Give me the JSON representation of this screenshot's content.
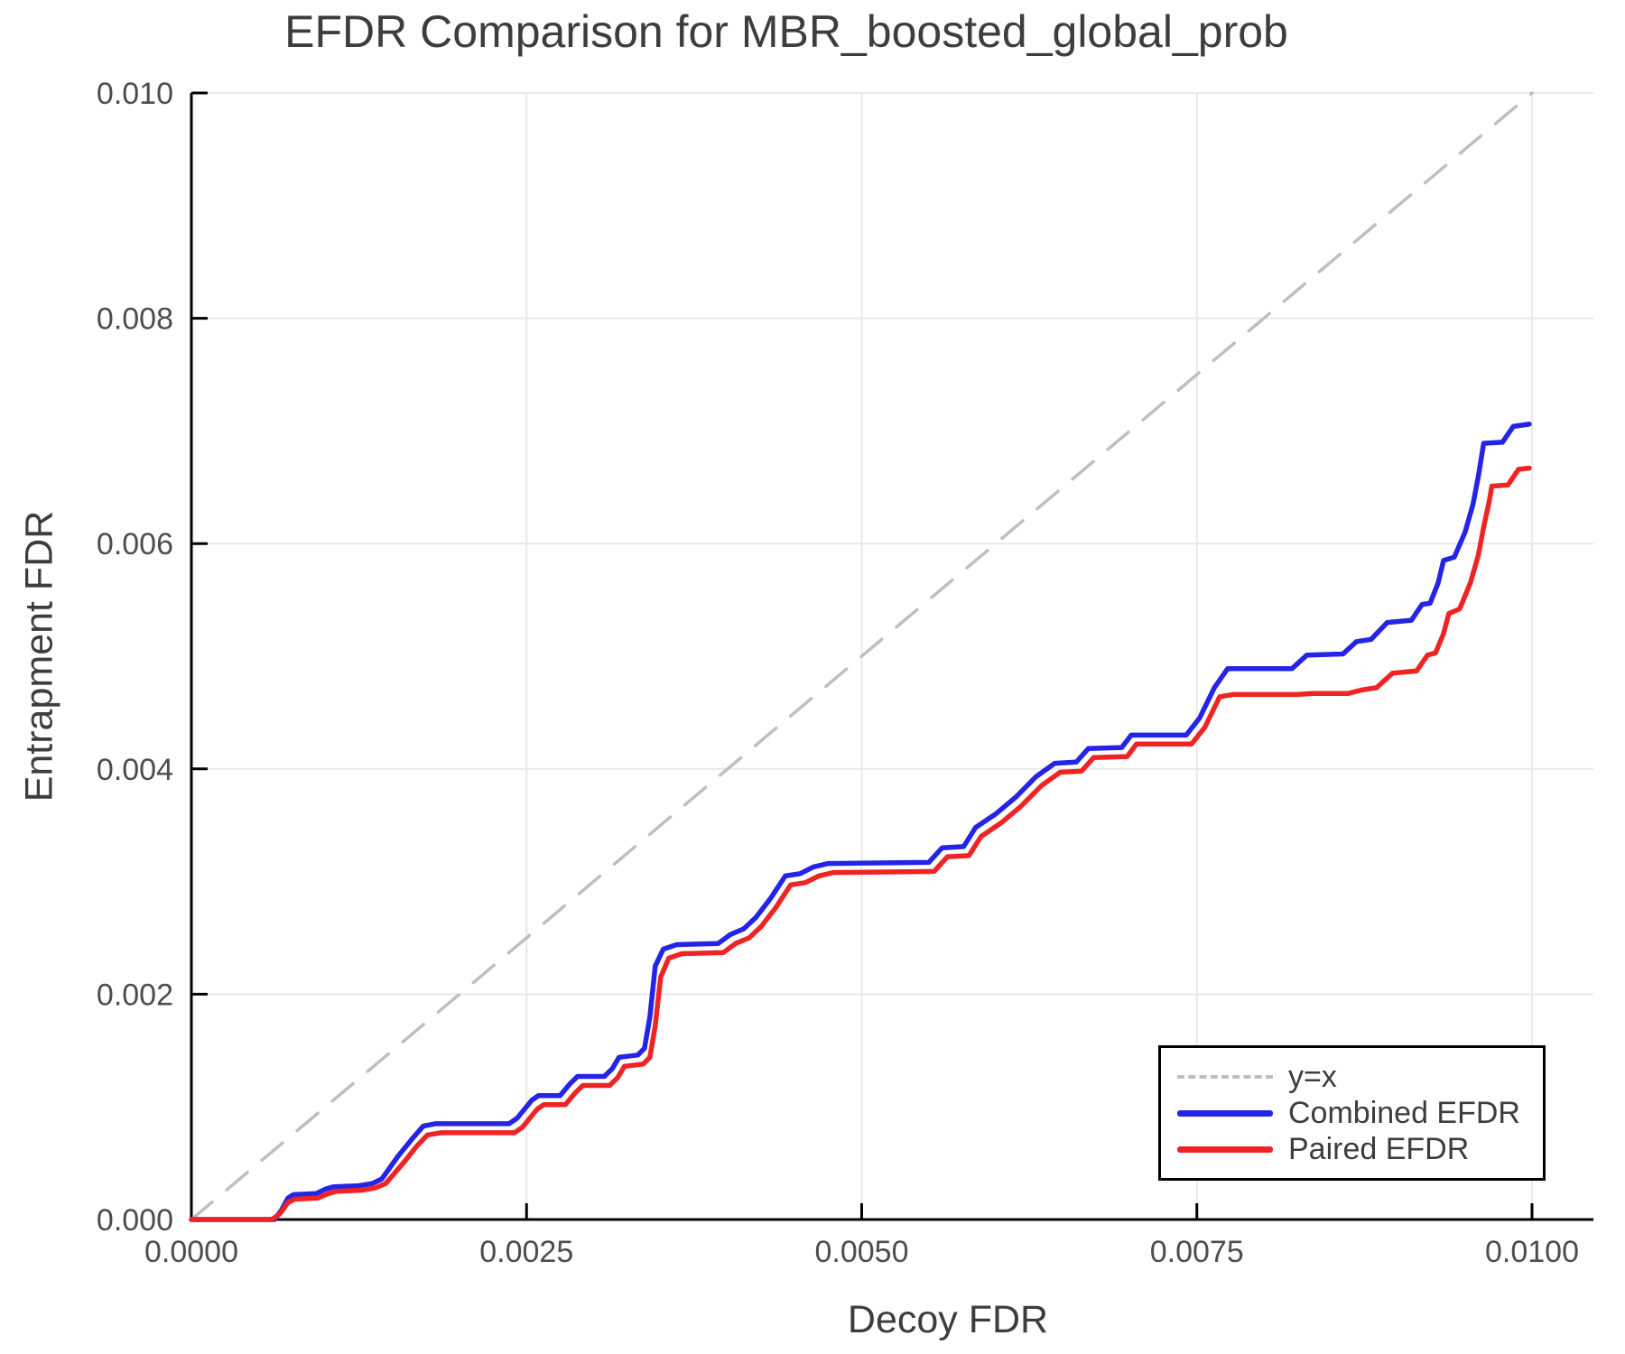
{
  "chart_data": {
    "type": "line",
    "title": "EFDR Comparison for MBR_boosted_global_prob",
    "xlabel": "Decoy FDR",
    "ylabel": "Entrapment FDR",
    "xlim": [
      0.0,
      0.01
    ],
    "ylim": [
      0.0,
      0.01
    ],
    "grid": true,
    "legend_position": "bottom-right",
    "x_ticks": [
      0.0,
      0.0025,
      0.005,
      0.0075,
      0.01
    ],
    "x_tick_labels": [
      "0.0000",
      "0.0025",
      "0.0050",
      "0.0075",
      "0.0100"
    ],
    "y_ticks": [
      0.0,
      0.002,
      0.004,
      0.006,
      0.008,
      0.01
    ],
    "y_tick_labels": [
      "0.000",
      "0.002",
      "0.004",
      "0.006",
      "0.008",
      "0.010"
    ],
    "colors": {
      "reference": "#bfbfbf",
      "combined": "#2424e6",
      "paired": "#f02323",
      "grid": "#e9e9e9",
      "axis": "#000000",
      "tick_text": "#4d4d4d"
    },
    "series": [
      {
        "name": "y=x",
        "style": "dashed",
        "color": "#bfbfbf",
        "points": [
          [
            0.0,
            0.0
          ],
          [
            0.01,
            0.01
          ]
        ]
      },
      {
        "name": "Combined EFDR",
        "style": "solid",
        "color": "#2424e6",
        "points": [
          [
            0.0,
            0.0
          ],
          [
            0.00062,
            0.0
          ],
          [
            0.00067,
            8e-05
          ],
          [
            0.00072,
            0.00019
          ],
          [
            0.00076,
            0.00022
          ],
          [
            0.00093,
            0.00023
          ],
          [
            0.001,
            0.00027
          ],
          [
            0.00106,
            0.00029
          ],
          [
            0.00125,
            0.0003
          ],
          [
            0.00135,
            0.00032
          ],
          [
            0.00142,
            0.00036
          ],
          [
            0.00154,
            0.00056
          ],
          [
            0.00165,
            0.00072
          ],
          [
            0.00173,
            0.00083
          ],
          [
            0.00182,
            0.00085
          ],
          [
            0.00237,
            0.00085
          ],
          [
            0.00243,
            0.0009
          ],
          [
            0.00254,
            0.00106
          ],
          [
            0.00259,
            0.0011
          ],
          [
            0.00275,
            0.0011
          ],
          [
            0.00282,
            0.0012
          ],
          [
            0.00288,
            0.00127
          ],
          [
            0.00308,
            0.00127
          ],
          [
            0.00314,
            0.00134
          ],
          [
            0.00319,
            0.00144
          ],
          [
            0.00333,
            0.00146
          ],
          [
            0.00338,
            0.00152
          ],
          [
            0.00342,
            0.0018
          ],
          [
            0.00346,
            0.00225
          ],
          [
            0.00352,
            0.0024
          ],
          [
            0.00362,
            0.00244
          ],
          [
            0.00393,
            0.00245
          ],
          [
            0.00402,
            0.00253
          ],
          [
            0.00412,
            0.00258
          ],
          [
            0.00421,
            0.00268
          ],
          [
            0.00432,
            0.00285
          ],
          [
            0.00443,
            0.00305
          ],
          [
            0.00454,
            0.00307
          ],
          [
            0.00464,
            0.00313
          ],
          [
            0.00475,
            0.00316
          ],
          [
            0.0055,
            0.00317
          ],
          [
            0.0056,
            0.0033
          ],
          [
            0.00576,
            0.00331
          ],
          [
            0.00585,
            0.00348
          ],
          [
            0.006,
            0.0036
          ],
          [
            0.00615,
            0.00375
          ],
          [
            0.0063,
            0.00393
          ],
          [
            0.00644,
            0.00405
          ],
          [
            0.0066,
            0.00406
          ],
          [
            0.00669,
            0.00418
          ],
          [
            0.00694,
            0.00419
          ],
          [
            0.00701,
            0.0043
          ],
          [
            0.00742,
            0.0043
          ],
          [
            0.00752,
            0.00445
          ],
          [
            0.00763,
            0.00472
          ],
          [
            0.00773,
            0.00489
          ],
          [
            0.00821,
            0.00489
          ],
          [
            0.00832,
            0.00501
          ],
          [
            0.00859,
            0.00502
          ],
          [
            0.00869,
            0.00513
          ],
          [
            0.0088,
            0.00515
          ],
          [
            0.00892,
            0.0053
          ],
          [
            0.0091,
            0.00532
          ],
          [
            0.00918,
            0.00546
          ],
          [
            0.00924,
            0.00547
          ],
          [
            0.0093,
            0.00565
          ],
          [
            0.00934,
            0.00585
          ],
          [
            0.00942,
            0.00588
          ],
          [
            0.0095,
            0.0061
          ],
          [
            0.00956,
            0.00635
          ],
          [
            0.0096,
            0.0066
          ],
          [
            0.00964,
            0.00689
          ],
          [
            0.00978,
            0.0069
          ],
          [
            0.00986,
            0.00704
          ],
          [
            0.00998,
            0.00706
          ]
        ]
      },
      {
        "name": "Paired EFDR",
        "style": "solid",
        "color": "#f02323",
        "points": [
          [
            0.0,
            0.0
          ],
          [
            0.0006,
            0.0
          ],
          [
            0.00066,
            5e-05
          ],
          [
            0.00072,
            0.00015
          ],
          [
            0.00077,
            0.00018
          ],
          [
            0.00094,
            0.00019
          ],
          [
            0.00102,
            0.00023
          ],
          [
            0.00108,
            0.00025
          ],
          [
            0.00127,
            0.00026
          ],
          [
            0.00137,
            0.00028
          ],
          [
            0.00145,
            0.00032
          ],
          [
            0.00158,
            0.0005
          ],
          [
            0.00168,
            0.00065
          ],
          [
            0.00176,
            0.00075
          ],
          [
            0.00186,
            0.00077
          ],
          [
            0.00241,
            0.00077
          ],
          [
            0.00247,
            0.00082
          ],
          [
            0.00258,
            0.00098
          ],
          [
            0.00263,
            0.00102
          ],
          [
            0.00279,
            0.00102
          ],
          [
            0.00286,
            0.00112
          ],
          [
            0.00292,
            0.00119
          ],
          [
            0.00312,
            0.00119
          ],
          [
            0.00318,
            0.00126
          ],
          [
            0.00323,
            0.00136
          ],
          [
            0.00337,
            0.00138
          ],
          [
            0.00342,
            0.00144
          ],
          [
            0.00346,
            0.00172
          ],
          [
            0.0035,
            0.00215
          ],
          [
            0.00356,
            0.00232
          ],
          [
            0.00366,
            0.00236
          ],
          [
            0.00397,
            0.00237
          ],
          [
            0.00406,
            0.00245
          ],
          [
            0.00416,
            0.0025
          ],
          [
            0.00425,
            0.0026
          ],
          [
            0.00436,
            0.00277
          ],
          [
            0.00447,
            0.00297
          ],
          [
            0.00458,
            0.00299
          ],
          [
            0.00468,
            0.00305
          ],
          [
            0.00479,
            0.00308
          ],
          [
            0.00554,
            0.00309
          ],
          [
            0.00564,
            0.00322
          ],
          [
            0.0058,
            0.00323
          ],
          [
            0.00589,
            0.0034
          ],
          [
            0.00604,
            0.00352
          ],
          [
            0.00619,
            0.00367
          ],
          [
            0.00634,
            0.00385
          ],
          [
            0.00648,
            0.00397
          ],
          [
            0.00664,
            0.00398
          ],
          [
            0.00673,
            0.0041
          ],
          [
            0.00698,
            0.00411
          ],
          [
            0.00705,
            0.00422
          ],
          [
            0.00746,
            0.00422
          ],
          [
            0.00756,
            0.00437
          ],
          [
            0.00767,
            0.00464
          ],
          [
            0.00777,
            0.00466
          ],
          [
            0.00825,
            0.00466
          ],
          [
            0.00836,
            0.00467
          ],
          [
            0.00863,
            0.00467
          ],
          [
            0.00873,
            0.0047
          ],
          [
            0.00884,
            0.00472
          ],
          [
            0.00896,
            0.00485
          ],
          [
            0.00914,
            0.00487
          ],
          [
            0.00922,
            0.00501
          ],
          [
            0.00928,
            0.00503
          ],
          [
            0.00934,
            0.0052
          ],
          [
            0.00938,
            0.00538
          ],
          [
            0.00946,
            0.00542
          ],
          [
            0.00954,
            0.00565
          ],
          [
            0.0096,
            0.0059
          ],
          [
            0.00964,
            0.00615
          ],
          [
            0.00968,
            0.00637
          ],
          [
            0.0097,
            0.00651
          ],
          [
            0.00982,
            0.00652
          ],
          [
            0.0099,
            0.00666
          ],
          [
            0.00998,
            0.00667
          ]
        ]
      }
    ]
  }
}
